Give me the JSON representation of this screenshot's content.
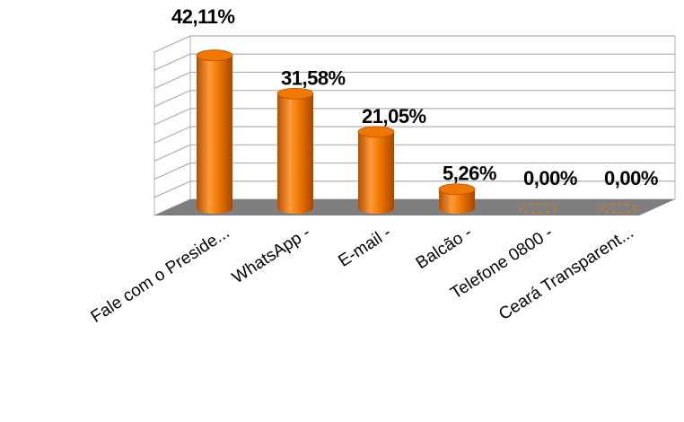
{
  "chart_data": {
    "type": "bar",
    "style": "3d-cylinder",
    "categories": [
      "Fale com o Preside...",
      "WhatsApp -",
      "E-mail -",
      "Balcão -",
      "Telefone 0800 -",
      "Ceará Transparent..."
    ],
    "values": [
      42.11,
      31.58,
      21.05,
      5.26,
      0.0,
      0.0
    ],
    "value_labels": [
      "42,11%",
      "31,58%",
      "21,05%",
      "5,26%",
      "0,00%",
      "0,00%"
    ],
    "title": "",
    "xlabel": "",
    "ylabel": "",
    "ylim": [
      0,
      45
    ],
    "grid": true,
    "legend": "none",
    "colors": {
      "bar": "#f07800",
      "bar_dark": "#b54f00",
      "bar_light": "#ffa24a",
      "floor": "#7f7f7f",
      "grid": "#b0b0b0"
    }
  }
}
